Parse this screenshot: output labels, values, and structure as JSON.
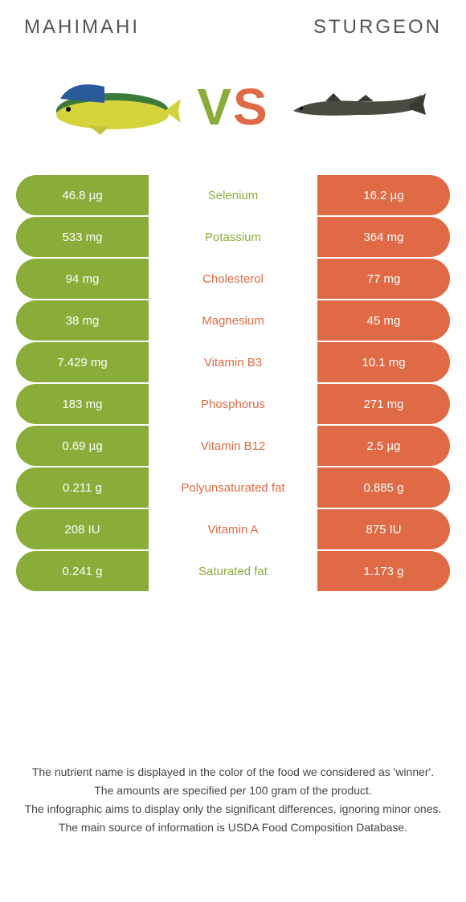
{
  "header": {
    "left_title": "MAHIMAHI",
    "right_title": "STURGEON"
  },
  "vs": {
    "v": "V",
    "s": "S"
  },
  "colors": {
    "green": "#8aad3a",
    "orange": "#e06a45"
  },
  "rows": [
    {
      "left": "46.8 µg",
      "label": "Selenium",
      "right": "16.2 µg",
      "winner": "left"
    },
    {
      "left": "533 mg",
      "label": "Potassium",
      "right": "364 mg",
      "winner": "left"
    },
    {
      "left": "94 mg",
      "label": "Cholesterol",
      "right": "77 mg",
      "winner": "right"
    },
    {
      "left": "38 mg",
      "label": "Magnesium",
      "right": "45 mg",
      "winner": "right"
    },
    {
      "left": "7.429 mg",
      "label": "Vitamin B3",
      "right": "10.1 mg",
      "winner": "right"
    },
    {
      "left": "183 mg",
      "label": "Phosphorus",
      "right": "271 mg",
      "winner": "right"
    },
    {
      "left": "0.69 µg",
      "label": "Vitamin B12",
      "right": "2.5 µg",
      "winner": "right"
    },
    {
      "left": "0.211 g",
      "label": "Polyunsaturated fat",
      "right": "0.885 g",
      "winner": "right"
    },
    {
      "left": "208 IU",
      "label": "Vitamin A",
      "right": "875 IU",
      "winner": "right"
    },
    {
      "left": "0.241 g",
      "label": "Saturated fat",
      "right": "1.173 g",
      "winner": "left"
    }
  ],
  "footer": {
    "line1": "The nutrient name is displayed in the color of the food we considered as 'winner'.",
    "line2": "The amounts are specified per 100 gram of the product.",
    "line3": "The infographic aims to display only the significant differences, ignoring minor ones.",
    "line4": "The main source of information is USDA Food Composition Database."
  }
}
